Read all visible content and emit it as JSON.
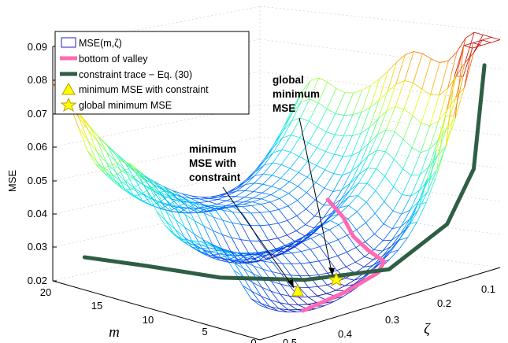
{
  "chart_data": {
    "type": "surface",
    "title": "",
    "zlabel": "MSE",
    "xlabel": "m",
    "ylabel": "ζ",
    "zlim": [
      0.02,
      0.09
    ],
    "xlim": [
      0,
      20
    ],
    "ylim": [
      0.05,
      0.5
    ],
    "z_ticks": [
      "0.02",
      "0.03",
      "0.04",
      "0.05",
      "0.06",
      "0.07",
      "0.08",
      "0.09"
    ],
    "m_ticks": [
      "20",
      "15",
      "10",
      "5",
      "0"
    ],
    "zeta_ticks": [
      "0.5",
      "0.4",
      "0.3",
      "0.2",
      "0.1"
    ],
    "grid": true,
    "legend_position": "top-left",
    "legend": [
      {
        "key": "surface",
        "label": "MSE(m,ζ)",
        "color": "#1f1fcc"
      },
      {
        "key": "valley",
        "label": "bottom of valley",
        "color": "#ff69b4"
      },
      {
        "key": "trace",
        "label": "constraint trace − Eq. (30)",
        "color": "#2e5e44"
      },
      {
        "key": "tri",
        "label": "minimum MSE with constraint",
        "color": "#ffff00"
      },
      {
        "key": "star",
        "label": "global minimum MSE",
        "color": "#ffff00"
      }
    ],
    "annotations": {
      "global": [
        "global",
        "minimum",
        "MSE"
      ],
      "constraint": [
        "minimum",
        "MSE with",
        "constraint"
      ]
    },
    "valley_path": [
      {
        "m": 12,
        "zeta": 0.14,
        "mse": 0.034
      },
      {
        "m": 10,
        "zeta": 0.15,
        "mse": 0.031
      },
      {
        "m": 8,
        "zeta": 0.17,
        "mse": 0.028
      },
      {
        "m": 6,
        "zeta": 0.18,
        "mse": 0.026
      },
      {
        "m": 4,
        "zeta": 0.19,
        "mse": 0.025
      },
      {
        "m": 3,
        "zeta": 0.22,
        "mse": 0.024
      },
      {
        "m": 2,
        "zeta": 0.3,
        "mse": 0.023
      },
      {
        "m": 1,
        "zeta": 0.4,
        "mse": 0.023
      }
    ],
    "constraint_trace": [
      {
        "m": 19,
        "zeta": 0.46,
        "mse": 0.026
      },
      {
        "m": 15,
        "zeta": 0.42,
        "mse": 0.025
      },
      {
        "m": 10,
        "zeta": 0.38,
        "mse": 0.024
      },
      {
        "m": 6,
        "zeta": 0.3,
        "mse": 0.023
      },
      {
        "m": 3,
        "zeta": 0.2,
        "mse": 0.024
      },
      {
        "m": 1.5,
        "zeta": 0.12,
        "mse": 0.035
      },
      {
        "m": 1,
        "zeta": 0.08,
        "mse": 0.05
      },
      {
        "m": 1,
        "zeta": 0.06,
        "mse": 0.08
      }
    ],
    "global_minimum": {
      "m": 2.5,
      "zeta": 0.22,
      "mse": 0.0235
    },
    "constrained_minimum": {
      "m": 6,
      "zeta": 0.35,
      "mse": 0.0235
    }
  }
}
